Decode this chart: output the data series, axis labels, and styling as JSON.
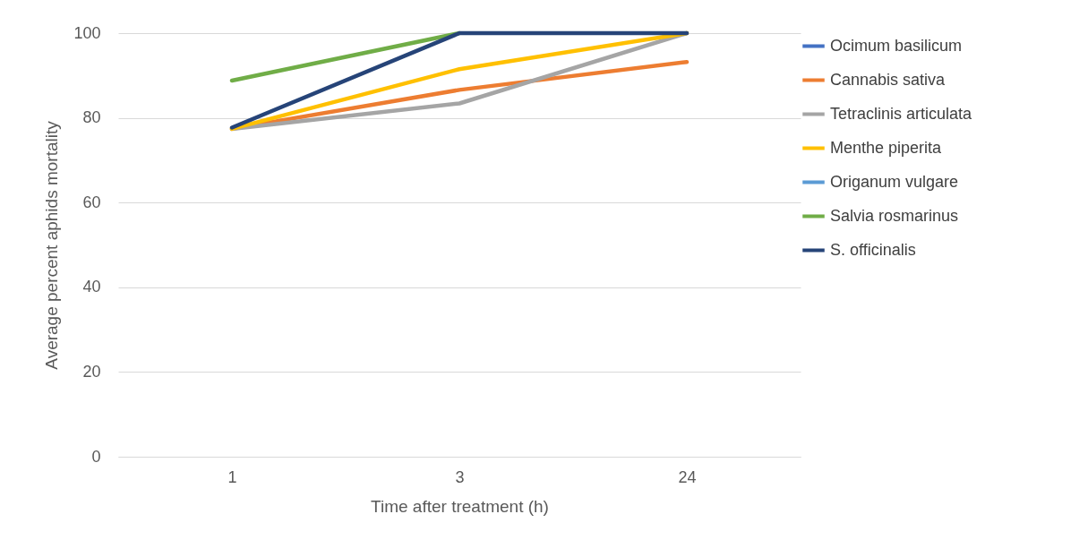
{
  "chart_data": {
    "type": "line",
    "xlabel": "Time after treatment (h)",
    "ylabel": "Average percent aphids mortality",
    "categories": [
      "1",
      "3",
      "24"
    ],
    "series": [
      {
        "name": "Ocimum basilicum",
        "color": "#4472c4",
        "values": [
          null,
          null,
          null
        ]
      },
      {
        "name": "Cannabis sativa",
        "color": "#ed7d31",
        "values": [
          77.4,
          86.6,
          93.2
        ]
      },
      {
        "name": "Tetraclinis articulata",
        "color": "#a5a5a5",
        "values": [
          77.4,
          83.4,
          100
        ]
      },
      {
        "name": "Menthe piperita",
        "color": "#ffc000",
        "values": [
          77.4,
          91.5,
          100
        ]
      },
      {
        "name": "Origanum vulgare",
        "color": "#5b9bd5",
        "values": [
          null,
          null,
          null
        ]
      },
      {
        "name": "Salvia rosmarinus",
        "color": "#70ad47",
        "values": [
          88.8,
          100,
          null
        ]
      },
      {
        "name": "S. officinalis",
        "color": "#264478",
        "values": [
          77.7,
          100,
          100
        ]
      }
    ],
    "ylim": [
      0,
      100
    ],
    "yticks": [
      0,
      20,
      40,
      60,
      80,
      100
    ],
    "grid": "y",
    "legend": "right"
  }
}
